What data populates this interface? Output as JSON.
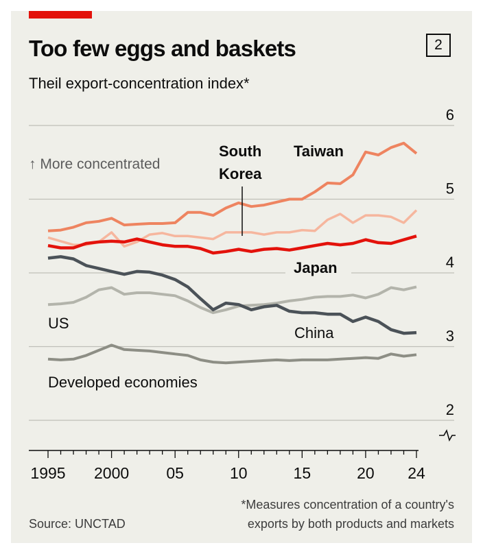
{
  "header": {
    "title": "Too few eggs and baskets",
    "subtitle": "Theil export-concentration index*",
    "badge": "2"
  },
  "footer": {
    "source": "Source: UNCTAD",
    "footnote_line1": "*Measures concentration of a country's",
    "footnote_line2": "exports by both products and markets"
  },
  "chart_data": {
    "type": "line",
    "title": "Too few eggs and baskets",
    "subtitle": "Theil export-concentration index*",
    "x_range": [
      1995,
      2024
    ],
    "ylim": [
      2,
      6
    ],
    "axis_break": true,
    "y_ticks": [
      2,
      3,
      4,
      5,
      6
    ],
    "y_tick_labels": [
      "2",
      "3",
      "4",
      "5",
      "6"
    ],
    "y_axis_position": "right",
    "x_ticks": [
      1995,
      2000,
      2005,
      2010,
      2015,
      2020,
      2024
    ],
    "x_tick_labels": [
      "1995",
      "2000",
      "05",
      "10",
      "15",
      "20",
      "24"
    ],
    "grid": true,
    "annotation": "↑ More concentrated",
    "colors": {
      "taiwan": "#ee8460",
      "south_korea": "#f6b69e",
      "japan": "#e3120b",
      "china": "#4b5258",
      "us": "#b3b4ab",
      "developed": "#8d8e85",
      "grid": "#bfbfb9",
      "axis": "#0c0c0c",
      "accent": "#e3120b"
    },
    "x": [
      1995,
      1996,
      1997,
      1998,
      1999,
      2000,
      2001,
      2002,
      2003,
      2004,
      2005,
      2006,
      2007,
      2008,
      2009,
      2010,
      2011,
      2012,
      2013,
      2014,
      2015,
      2016,
      2017,
      2018,
      2019,
      2020,
      2021,
      2022,
      2023,
      2024
    ],
    "series": [
      {
        "name": "Taiwan",
        "color": "#ee8460",
        "width": 4,
        "label": "Taiwan",
        "values": [
          4.57,
          4.58,
          4.62,
          4.68,
          4.7,
          4.74,
          4.65,
          4.66,
          4.67,
          4.67,
          4.68,
          4.82,
          4.82,
          4.78,
          4.88,
          4.95,
          4.9,
          4.92,
          4.96,
          5.0,
          5.0,
          5.1,
          5.22,
          5.21,
          5.33,
          5.64,
          5.6,
          5.7,
          5.76,
          5.62
        ]
      },
      {
        "name": "South Korea",
        "color": "#f6b69e",
        "width": 3.5,
        "label": "South Korea",
        "values": [
          4.48,
          4.43,
          4.38,
          4.38,
          4.42,
          4.55,
          4.36,
          4.42,
          4.52,
          4.54,
          4.5,
          4.5,
          4.48,
          4.46,
          4.55,
          4.55,
          4.55,
          4.52,
          4.55,
          4.55,
          4.58,
          4.57,
          4.72,
          4.8,
          4.68,
          4.78,
          4.78,
          4.76,
          4.68,
          4.85
        ]
      },
      {
        "name": "Japan",
        "color": "#e3120b",
        "width": 4.5,
        "label": "Japan",
        "values": [
          4.37,
          4.34,
          4.34,
          4.4,
          4.42,
          4.43,
          4.42,
          4.46,
          4.42,
          4.38,
          4.36,
          4.36,
          4.33,
          4.27,
          4.29,
          4.32,
          4.29,
          4.32,
          4.33,
          4.31,
          4.34,
          4.37,
          4.4,
          4.38,
          4.4,
          4.45,
          4.41,
          4.4,
          4.45,
          4.5
        ]
      },
      {
        "name": "US",
        "color": "#b3b4ab",
        "width": 4,
        "label": "US",
        "values": [
          3.57,
          3.58,
          3.6,
          3.67,
          3.77,
          3.8,
          3.71,
          3.73,
          3.73,
          3.71,
          3.69,
          3.62,
          3.53,
          3.46,
          3.5,
          3.55,
          3.56,
          3.57,
          3.59,
          3.62,
          3.64,
          3.67,
          3.68,
          3.68,
          3.7,
          3.66,
          3.71,
          3.8,
          3.77,
          3.81
        ]
      },
      {
        "name": "China",
        "color": "#4b5258",
        "width": 4.5,
        "label": "China",
        "values": [
          4.2,
          4.22,
          4.19,
          4.1,
          4.06,
          4.02,
          3.98,
          4.02,
          4.01,
          3.97,
          3.91,
          3.81,
          3.65,
          3.5,
          3.59,
          3.57,
          3.5,
          3.54,
          3.56,
          3.48,
          3.46,
          3.46,
          3.44,
          3.44,
          3.34,
          3.4,
          3.34,
          3.23,
          3.18,
          3.19
        ]
      },
      {
        "name": "Developed economies",
        "color": "#8d8e85",
        "width": 4,
        "label": "Developed economies",
        "values": [
          2.83,
          2.82,
          2.83,
          2.88,
          2.95,
          3.02,
          2.96,
          2.95,
          2.94,
          2.92,
          2.9,
          2.88,
          2.82,
          2.79,
          2.78,
          2.79,
          2.8,
          2.81,
          2.82,
          2.81,
          2.82,
          2.82,
          2.82,
          2.83,
          2.84,
          2.85,
          2.84,
          2.9,
          2.87,
          2.89
        ]
      }
    ]
  }
}
